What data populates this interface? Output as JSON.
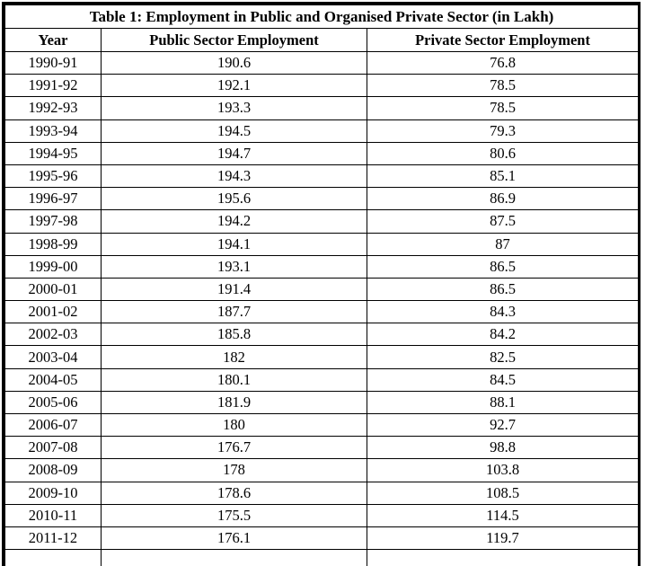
{
  "table": {
    "title": "Table 1: Employment in Public and Organised Private Sector (in Lakh)",
    "columns": [
      "Year",
      "Public Sector Employment",
      "Private Sector Employment"
    ],
    "rows": [
      [
        "1990-91",
        "190.6",
        "76.8"
      ],
      [
        "1991-92",
        "192.1",
        "78.5"
      ],
      [
        "1992-93",
        "193.3",
        "78.5"
      ],
      [
        "1993-94",
        "194.5",
        "79.3"
      ],
      [
        "1994-95",
        "194.7",
        "80.6"
      ],
      [
        "1995-96",
        "194.3",
        "85.1"
      ],
      [
        "1996-97",
        "195.6",
        "86.9"
      ],
      [
        "1997-98",
        "194.2",
        "87.5"
      ],
      [
        "1998-99",
        "194.1",
        "87"
      ],
      [
        "1999-00",
        "193.1",
        "86.5"
      ],
      [
        "2000-01",
        "191.4",
        "86.5"
      ],
      [
        "2001-02",
        "187.7",
        "84.3"
      ],
      [
        "2002-03",
        "185.8",
        "84.2"
      ],
      [
        "2003-04",
        "182",
        "82.5"
      ],
      [
        "2004-05",
        "180.1",
        "84.5"
      ],
      [
        "2005-06",
        "181.9",
        "88.1"
      ],
      [
        "2006-07",
        "180",
        "92.7"
      ],
      [
        "2007-08",
        "176.7",
        "98.8"
      ],
      [
        "2008-09",
        "178",
        "103.8"
      ],
      [
        "2009-10",
        "178.6",
        "108.5"
      ],
      [
        "2010-11",
        "175.5",
        "114.5"
      ],
      [
        "2011-12",
        "176.1",
        "119.7"
      ]
    ],
    "border_color": "#000000",
    "background_color": "#ffffff"
  },
  "chart_data": {
    "type": "table",
    "title": "Table 1: Employment in Public and Organised Private Sector (in Lakh)",
    "categories": [
      "1990-91",
      "1991-92",
      "1992-93",
      "1993-94",
      "1994-95",
      "1995-96",
      "1996-97",
      "1997-98",
      "1998-99",
      "1999-00",
      "2000-01",
      "2001-02",
      "2002-03",
      "2003-04",
      "2004-05",
      "2005-06",
      "2006-07",
      "2007-08",
      "2008-09",
      "2009-10",
      "2010-11",
      "2011-12"
    ],
    "series": [
      {
        "name": "Public Sector Employment",
        "values": [
          190.6,
          192.1,
          193.3,
          194.5,
          194.7,
          194.3,
          195.6,
          194.2,
          194.1,
          193.1,
          191.4,
          187.7,
          185.8,
          182,
          180.1,
          181.9,
          180,
          176.7,
          178,
          178.6,
          175.5,
          176.1
        ]
      },
      {
        "name": "Private Sector Employment",
        "values": [
          76.8,
          78.5,
          78.5,
          79.3,
          80.6,
          85.1,
          86.9,
          87.5,
          87,
          86.5,
          86.5,
          84.3,
          84.2,
          82.5,
          84.5,
          88.1,
          92.7,
          98.8,
          103.8,
          108.5,
          114.5,
          119.7
        ]
      }
    ],
    "unit": "Lakh"
  }
}
